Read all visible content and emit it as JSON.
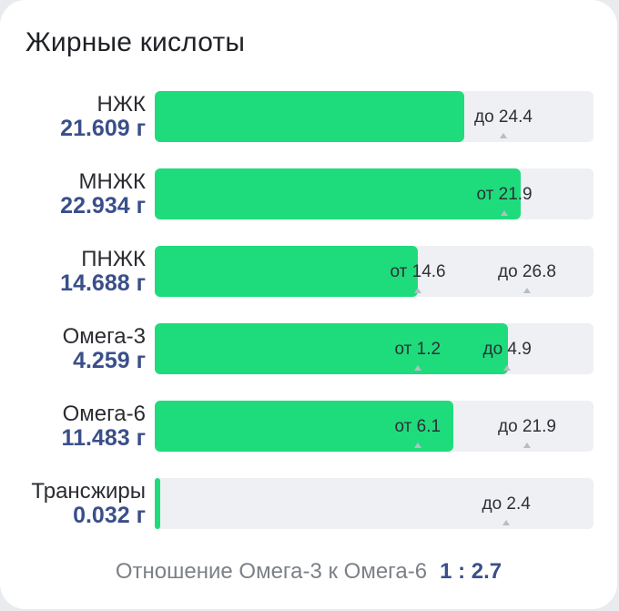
{
  "card": {
    "title": "Жирные кислоты"
  },
  "rows": [
    {
      "label": "НЖК",
      "value": "21.609 г",
      "fill_fraction": 0.706,
      "markers": [
        {
          "text": "до 24.4",
          "pos_fraction": 0.795
        }
      ]
    },
    {
      "label": "МНЖК",
      "value": "22.934 г",
      "fill_fraction": 0.835,
      "markers": [
        {
          "text": "от 21.9",
          "pos_fraction": 0.797
        }
      ]
    },
    {
      "label": "ПНЖК",
      "value": "14.688 г",
      "fill_fraction": 0.6,
      "markers": [
        {
          "text": "от 14.6",
          "pos_fraction": 0.6
        },
        {
          "text": "до 26.8",
          "pos_fraction": 0.849
        }
      ]
    },
    {
      "label": "Омега-3",
      "value": "4.259 г",
      "fill_fraction": 0.805,
      "markers": [
        {
          "text": "от 1.2",
          "pos_fraction": 0.6
        },
        {
          "text": "до 4.9",
          "pos_fraction": 0.802
        }
      ]
    },
    {
      "label": "Омега-6",
      "value": "11.483 г",
      "fill_fraction": 0.68,
      "markers": [
        {
          "text": "от 6.1",
          "pos_fraction": 0.6
        },
        {
          "text": "до 21.9",
          "pos_fraction": 0.849
        }
      ]
    },
    {
      "label": "Трансжиры",
      "value": "0.032 г",
      "fill_fraction": 0.012,
      "markers": [
        {
          "text": "до 2.4",
          "pos_fraction": 0.8
        }
      ]
    }
  ],
  "ratio": {
    "label": "Отношение Омега-3 к Омега-6",
    "value": "1 : 2.7"
  },
  "colors": {
    "fill": "#1edc7c",
    "track": "#eff0f3",
    "value_text": "#3a4f8a",
    "muted_text": "#7c8088"
  }
}
